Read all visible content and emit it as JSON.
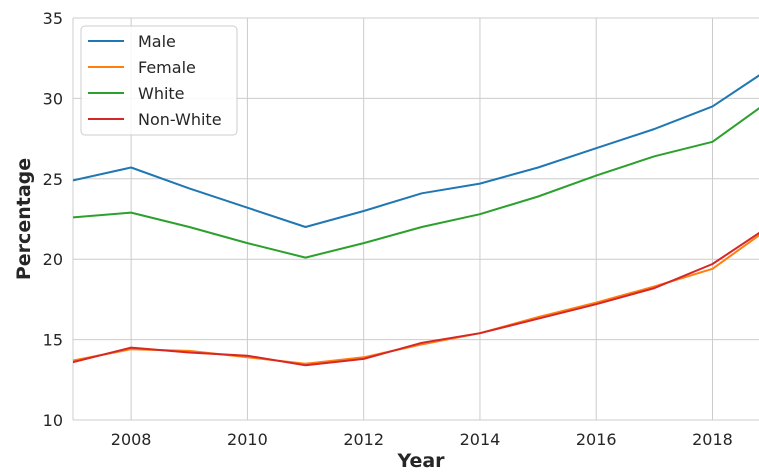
{
  "chart_data": {
    "type": "line",
    "title": "",
    "xlabel": "Year",
    "ylabel": "Percentage",
    "x": [
      2007,
      2008,
      2009,
      2010,
      2011,
      2012,
      2013,
      2014,
      2015,
      2016,
      2017,
      2018,
      2019
    ],
    "xlim": [
      2007,
      2018.8
    ],
    "ylim": [
      10,
      35
    ],
    "xticks": [
      2008,
      2010,
      2012,
      2014,
      2016,
      2018
    ],
    "yticks": [
      10,
      15,
      20,
      25,
      30,
      35
    ],
    "xtick_labels": [
      "2008",
      "2010",
      "2012",
      "2014",
      "2016",
      "2018"
    ],
    "ytick_labels": [
      "10",
      "15",
      "20",
      "25",
      "30",
      "35"
    ],
    "grid": true,
    "legend_position": "top-left",
    "series": [
      {
        "name": "Male",
        "color": "#1f77b4",
        "values": [
          24.9,
          25.7,
          24.4,
          23.2,
          22.0,
          23.0,
          24.1,
          24.7,
          25.7,
          26.9,
          28.1,
          29.5,
          31.9
        ]
      },
      {
        "name": "Female",
        "color": "#ff7f0e",
        "values": [
          13.7,
          14.4,
          14.3,
          13.9,
          13.5,
          13.9,
          14.7,
          15.4,
          16.4,
          17.3,
          18.3,
          19.4,
          22.0
        ]
      },
      {
        "name": "White",
        "color": "#2ca02c",
        "values": [
          22.6,
          22.9,
          22.0,
          21.0,
          20.1,
          21.0,
          22.0,
          22.8,
          23.9,
          25.2,
          26.4,
          27.3,
          29.9
        ]
      },
      {
        "name": "Non-White",
        "color": "#d62728",
        "values": [
          13.6,
          14.5,
          14.2,
          14.0,
          13.4,
          13.8,
          14.8,
          15.4,
          16.3,
          17.2,
          18.2,
          19.7,
          22.1
        ]
      }
    ]
  }
}
